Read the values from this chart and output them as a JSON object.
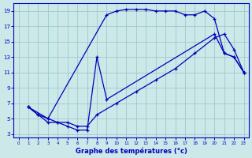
{
  "title": "Graphe des températures (°c)",
  "bg_color": "#cce8e8",
  "line_color": "#0000bb",
  "xlim": [
    -0.5,
    23.5
  ],
  "ylim": [
    2.5,
    20
  ],
  "xticks": [
    0,
    1,
    2,
    3,
    4,
    5,
    6,
    7,
    8,
    9,
    10,
    11,
    12,
    13,
    14,
    15,
    16,
    17,
    18,
    19,
    20,
    21,
    22,
    23
  ],
  "yticks": [
    3,
    5,
    7,
    9,
    11,
    13,
    15,
    17,
    19
  ],
  "grid_color": "#99cccc",
  "series": [
    {
      "x": [
        1,
        2,
        3,
        9,
        10,
        11,
        12,
        13,
        14,
        15,
        16,
        17,
        18,
        19,
        20,
        21,
        22,
        23
      ],
      "y": [
        6.5,
        5.5,
        5.0,
        18.5,
        19.0,
        19.2,
        19.2,
        19.2,
        19.0,
        19.0,
        19.0,
        18.5,
        18.5,
        19.0,
        18.0,
        13.5,
        13.0,
        11.0
      ]
    },
    {
      "x": [
        1,
        2,
        3,
        4,
        5,
        6,
        7,
        8,
        9,
        20,
        21,
        22,
        23
      ],
      "y": [
        6.5,
        5.5,
        4.5,
        4.5,
        4.0,
        3.5,
        3.5,
        13.0,
        7.5,
        16.0,
        13.5,
        13.0,
        11.0
      ]
    },
    {
      "x": [
        1,
        3,
        4,
        5,
        6,
        7,
        8,
        10,
        12,
        14,
        16,
        18,
        20,
        21,
        22,
        23
      ],
      "y": [
        6.5,
        5.0,
        4.5,
        4.5,
        4.0,
        4.0,
        5.5,
        7.0,
        8.5,
        10.0,
        11.5,
        13.5,
        15.5,
        16.0,
        14.0,
        11.0
      ]
    }
  ]
}
